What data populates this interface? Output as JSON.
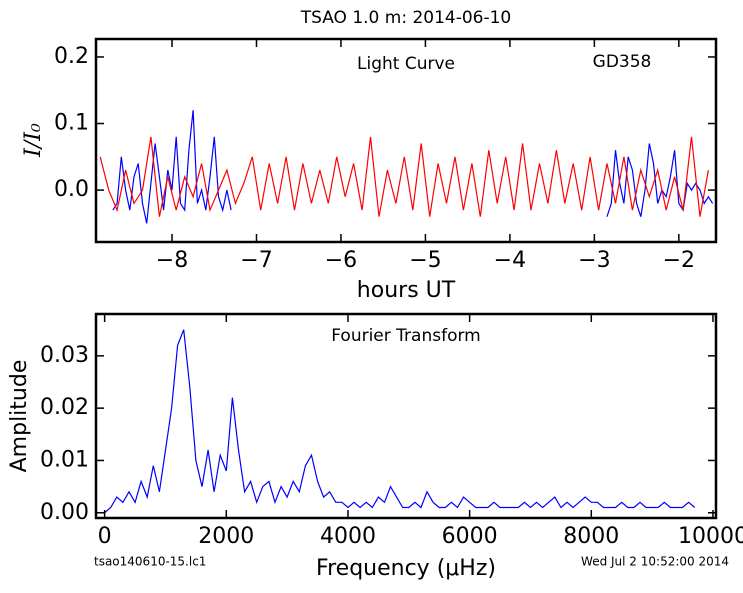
{
  "chart_data": [
    {
      "type": "line",
      "title": "TSAO 1.0 m:  2014-06-10",
      "annotations": [
        "Light Curve",
        "GD358"
      ],
      "xlabel": "hours UT",
      "ylabel": "I/I₀",
      "xlim": [
        -8.9,
        -1.56
      ],
      "ylim": [
        -0.078,
        0.227
      ],
      "xticks": [
        {
          "value": -8,
          "label": "−8"
        },
        {
          "value": -7,
          "label": "−7"
        },
        {
          "value": -6,
          "label": "−6"
        },
        {
          "value": -5,
          "label": "−5"
        },
        {
          "value": -4,
          "label": "−4"
        },
        {
          "value": -3,
          "label": "−3"
        },
        {
          "value": -2,
          "label": "−2"
        }
      ],
      "yticks": [
        {
          "value": 0,
          "label": "0.0"
        },
        0.1,
        0.2
      ],
      "series": [
        {
          "color": "#0000ff",
          "x": [
            -8.7,
            -8.65,
            -8.6,
            -8.55,
            -8.5,
            -8.45,
            -8.4,
            -8.35,
            -8.3,
            -8.25,
            -8.2,
            -8.15,
            -8.1,
            -8.05,
            -8.0,
            -7.95,
            -7.9,
            -7.85,
            -7.8,
            -7.75,
            -7.7,
            -7.65,
            -7.6,
            -7.55,
            -7.5,
            -7.45,
            -7.4,
            -7.35,
            -7.3,
            -5.0,
            -2.85,
            -2.8,
            -2.75,
            -2.7,
            -2.65,
            -2.6,
            -2.55,
            -2.5,
            -2.45,
            -2.4,
            -2.35,
            -2.3,
            -2.25,
            -2.2,
            -2.15,
            -2.1,
            -2.05,
            -2.0,
            -1.95,
            -1.9,
            -1.85,
            -1.8,
            -1.75,
            -1.7,
            -1.65,
            -1.6
          ],
          "values": [
            -0.03,
            -0.02,
            0.05,
            0.0,
            -0.03,
            0.02,
            0.04,
            -0.02,
            -0.05,
            0.01,
            0.07,
            0.02,
            -0.03,
            0.03,
            0.0,
            0.08,
            -0.02,
            -0.03,
            0.06,
            0.12,
            -0.02,
            0.0,
            -0.03,
            0.02,
            0.08,
            -0.01,
            -0.03,
            0.0,
            -0.03,
            null,
            -0.04,
            -0.02,
            0.06,
            0.01,
            -0.02,
            0.05,
            0.03,
            -0.02,
            -0.04,
            0.0,
            0.07,
            0.04,
            -0.02,
            0.0,
            -0.01,
            0.02,
            0.06,
            -0.02,
            -0.03,
            0.01,
            0.0,
            0.01,
            0.0,
            -0.02,
            -0.01,
            -0.02
          ]
        },
        {
          "color": "#ff0000",
          "x": [
            -8.85,
            -8.75,
            -8.65,
            -8.55,
            -8.45,
            -8.35,
            -8.25,
            -8.15,
            -8.05,
            -7.95,
            -7.85,
            -7.75,
            -7.65,
            -7.55,
            -7.45,
            -7.35,
            -7.25,
            -7.15,
            -7.05,
            -6.95,
            -6.85,
            -6.75,
            -6.65,
            -6.55,
            -6.45,
            -6.35,
            -6.25,
            -6.15,
            -6.05,
            -5.95,
            -5.85,
            -5.75,
            -5.65,
            -5.55,
            -5.45,
            -5.35,
            -5.25,
            -5.15,
            -5.05,
            -4.95,
            -4.85,
            -4.75,
            -4.65,
            -4.55,
            -4.45,
            -4.35,
            -4.25,
            -4.15,
            -4.05,
            -3.95,
            -3.85,
            -3.75,
            -3.65,
            -3.55,
            -3.45,
            -3.35,
            -3.25,
            -3.15,
            -3.05,
            -2.95,
            -2.85,
            -2.75,
            -2.65,
            -2.55,
            -2.45,
            -2.35,
            -2.25,
            -2.15,
            -2.05,
            -1.95,
            -1.85,
            -1.75,
            -1.65
          ],
          "values": [
            0.05,
            0.0,
            -0.03,
            0.03,
            -0.02,
            0.0,
            0.08,
            -0.04,
            0.02,
            -0.03,
            0.02,
            -0.01,
            0.04,
            -0.03,
            0.0,
            0.03,
            -0.02,
            0.01,
            0.05,
            -0.03,
            0.04,
            -0.02,
            0.05,
            -0.03,
            0.04,
            -0.02,
            0.03,
            -0.02,
            0.05,
            -0.01,
            0.04,
            -0.03,
            0.08,
            -0.04,
            0.03,
            -0.02,
            0.05,
            -0.03,
            0.07,
            -0.04,
            0.04,
            -0.02,
            0.05,
            -0.03,
            0.04,
            -0.04,
            0.06,
            -0.02,
            0.05,
            -0.03,
            0.07,
            -0.03,
            0.04,
            -0.02,
            0.06,
            -0.02,
            0.04,
            -0.03,
            0.05,
            -0.03,
            0.04,
            -0.02,
            0.05,
            -0.03,
            0.03,
            -0.01,
            0.03,
            -0.03,
            0.02,
            -0.03,
            0.08,
            -0.04,
            0.03
          ]
        }
      ]
    },
    {
      "type": "line",
      "annotations": [
        "Fourier Transform"
      ],
      "xlabel": "Frequency (μHz)",
      "ylabel": "Amplitude",
      "footer_left": "tsao140610-15.lc1",
      "footer_right": "Wed Jul  2 10:52:00 2014",
      "xlim": [
        -142,
        10050
      ],
      "ylim": [
        -0.001,
        0.038
      ],
      "xticks": [
        0,
        2000,
        4000,
        6000,
        8000,
        10000
      ],
      "yticks": [
        {
          "value": 0,
          "label": "0.00"
        },
        {
          "value": 0.01,
          "label": "0.01"
        },
        {
          "value": 0.02,
          "label": "0.02"
        },
        {
          "value": 0.03,
          "label": "0.03"
        }
      ],
      "series": [
        {
          "color": "#0000ff",
          "x": [
            0,
            100,
            200,
            300,
            400,
            500,
            600,
            700,
            800,
            900,
            1000,
            1100,
            1200,
            1300,
            1400,
            1500,
            1600,
            1700,
            1800,
            1900,
            2000,
            2100,
            2200,
            2300,
            2400,
            2500,
            2600,
            2700,
            2800,
            2900,
            3000,
            3100,
            3200,
            3300,
            3400,
            3500,
            3600,
            3700,
            3800,
            3900,
            4000,
            4100,
            4200,
            4300,
            4400,
            4500,
            4600,
            4700,
            4800,
            4900,
            5000,
            5100,
            5200,
            5300,
            5400,
            5500,
            5600,
            5700,
            5800,
            5900,
            6000,
            6100,
            6200,
            6300,
            6400,
            6500,
            6600,
            6700,
            6800,
            6900,
            7000,
            7100,
            7200,
            7300,
            7400,
            7500,
            7600,
            7700,
            7800,
            7900,
            8000,
            8100,
            8200,
            8300,
            8400,
            8500,
            8600,
            8700,
            8800,
            8900,
            9000,
            9100,
            9200,
            9300,
            9400,
            9500,
            9600,
            9700
          ],
          "values": [
            0.0,
            0.001,
            0.003,
            0.002,
            0.004,
            0.002,
            0.006,
            0.003,
            0.009,
            0.004,
            0.012,
            0.02,
            0.032,
            0.035,
            0.024,
            0.01,
            0.005,
            0.012,
            0.004,
            0.011,
            0.008,
            0.022,
            0.012,
            0.004,
            0.006,
            0.002,
            0.005,
            0.006,
            0.002,
            0.005,
            0.003,
            0.006,
            0.004,
            0.009,
            0.011,
            0.006,
            0.003,
            0.004,
            0.002,
            0.002,
            0.001,
            0.002,
            0.001,
            0.002,
            0.001,
            0.003,
            0.002,
            0.005,
            0.003,
            0.001,
            0.001,
            0.002,
            0.001,
            0.004,
            0.002,
            0.001,
            0.001,
            0.002,
            0.001,
            0.003,
            0.002,
            0.001,
            0.001,
            0.001,
            0.002,
            0.001,
            0.001,
            0.001,
            0.001,
            0.002,
            0.001,
            0.002,
            0.001,
            0.002,
            0.003,
            0.001,
            0.002,
            0.001,
            0.002,
            0.003,
            0.002,
            0.002,
            0.001,
            0.001,
            0.001,
            0.002,
            0.001,
            0.001,
            0.002,
            0.001,
            0.001,
            0.001,
            0.002,
            0.001,
            0.001,
            0.001,
            0.002,
            0.001
          ]
        }
      ]
    }
  ]
}
